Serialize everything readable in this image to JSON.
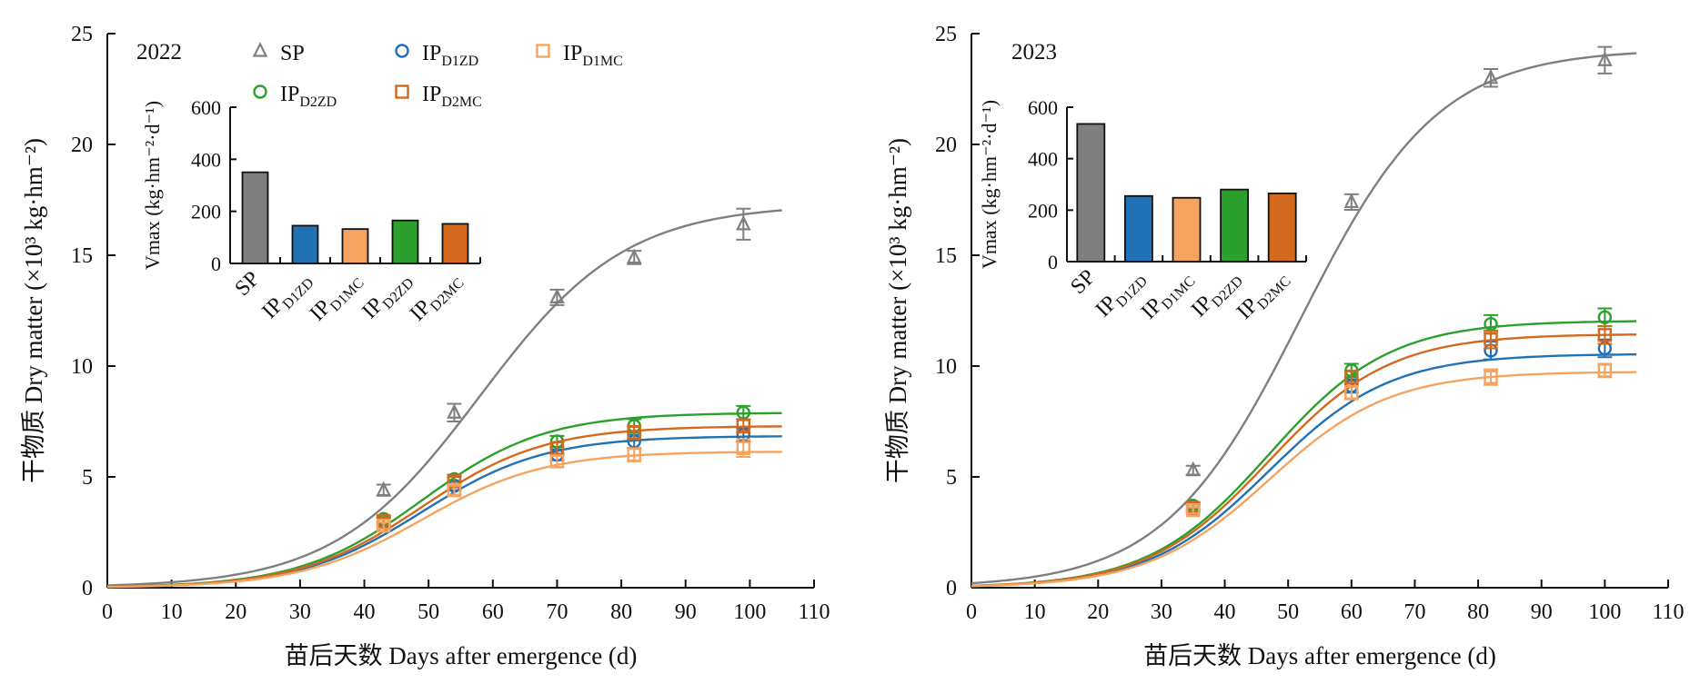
{
  "colors": {
    "SP": "#7f7f7f",
    "IP_D1ZD": "#2171b5",
    "IP_D1MC": "#f4a460",
    "IP_D2ZD": "#2ca02c",
    "IP_D2MC": "#d2691e"
  },
  "chart_data": [
    {
      "type": "line",
      "panel_label": "2022",
      "xlabel": "苗后天数 Days after emergence (d)",
      "ylabel": "干物质 Dry matter (×10³ kg·hm⁻²)",
      "xlim": [
        0,
        110
      ],
      "ylim": [
        0,
        25
      ],
      "xticks": [
        0,
        10,
        20,
        30,
        40,
        50,
        60,
        70,
        80,
        90,
        100,
        110
      ],
      "yticks": [
        0,
        5,
        10,
        15,
        20,
        25
      ],
      "x_obs": [
        43,
        54,
        70,
        82,
        99
      ],
      "legend": {
        "position": "top-center",
        "ncol": 3
      },
      "series": [
        {
          "key": "SP",
          "name": "SP",
          "marker": "triangle",
          "sub": "",
          "values": [
            4.4,
            7.9,
            13.1,
            14.9,
            16.4
          ],
          "err": [
            0.25,
            0.4,
            0.35,
            0.3,
            0.7
          ],
          "fit": {
            "K": 17.3,
            "r": 0.088,
            "t0": 58
          }
        },
        {
          "key": "IP_D1ZD",
          "name": "IP",
          "marker": "circle",
          "sub": "D1ZD",
          "values": [
            3.0,
            4.6,
            6.0,
            6.6,
            6.9
          ],
          "err": [
            0.15,
            0.2,
            0.25,
            0.3,
            0.3
          ],
          "fit": {
            "K": 6.85,
            "r": 0.105,
            "t0": 49
          }
        },
        {
          "key": "IP_D2ZD",
          "name": "IP",
          "marker": "circle",
          "sub": "D2ZD",
          "values": [
            3.1,
            4.9,
            6.6,
            7.3,
            7.9
          ],
          "err": [
            0.15,
            0.2,
            0.25,
            0.3,
            0.3
          ],
          "fit": {
            "K": 7.9,
            "r": 0.105,
            "t0": 49
          }
        },
        {
          "key": "IP_D2MC",
          "name": "IP",
          "marker": "square",
          "sub": "D2MC",
          "values": [
            3.0,
            4.8,
            6.3,
            7.0,
            7.3
          ],
          "err": [
            0.15,
            0.2,
            0.25,
            0.3,
            0.3
          ],
          "fit": {
            "K": 7.3,
            "r": 0.105,
            "t0": 49
          }
        },
        {
          "key": "IP_D1MC",
          "name": "IP",
          "marker": "square",
          "sub": "D1MC",
          "values": [
            2.8,
            4.4,
            5.7,
            6.0,
            6.3
          ],
          "err": [
            0.15,
            0.2,
            0.25,
            0.3,
            0.4
          ],
          "fit": {
            "K": 6.15,
            "r": 0.105,
            "t0": 49
          }
        }
      ],
      "inset": {
        "type": "bar",
        "ylabel": "Vmax (kg·hm⁻²·d⁻¹)",
        "ylim": [
          0,
          600
        ],
        "yticks": [
          0,
          200,
          400,
          600
        ],
        "categories": [
          {
            "key": "SP",
            "name": "SP",
            "sub": "",
            "value": 350
          },
          {
            "key": "IP_D1ZD",
            "name": "IP",
            "sub": "D1ZD",
            "value": 145
          },
          {
            "key": "IP_D1MC",
            "name": "IP",
            "sub": "D1MC",
            "value": 132
          },
          {
            "key": "IP_D2ZD",
            "name": "IP",
            "sub": "D2ZD",
            "value": 165
          },
          {
            "key": "IP_D2MC",
            "name": "IP",
            "sub": "D2MC",
            "value": 152
          }
        ]
      }
    },
    {
      "type": "line",
      "panel_label": "2023",
      "xlabel": "苗后天数 Days after emergence (d)",
      "ylabel": "干物质 Dry matter (×10³ kg·hm⁻²)",
      "xlim": [
        0,
        110
      ],
      "ylim": [
        0,
        25
      ],
      "xticks": [
        0,
        10,
        20,
        30,
        40,
        50,
        60,
        70,
        80,
        90,
        100,
        110
      ],
      "yticks": [
        0,
        5,
        10,
        15,
        20,
        25
      ],
      "x_obs": [
        35,
        60,
        82,
        100
      ],
      "series": [
        {
          "key": "SP",
          "name": "SP",
          "marker": "triangle",
          "sub": "",
          "values": [
            5.3,
            17.4,
            23.0,
            23.8
          ],
          "err": [
            0.2,
            0.35,
            0.4,
            0.6
          ],
          "fit": {
            "K": 24.3,
            "r": 0.092,
            "t0": 52
          }
        },
        {
          "key": "IP_D1ZD",
          "name": "IP",
          "marker": "circle",
          "sub": "D1ZD",
          "values": [
            3.6,
            9.1,
            10.7,
            10.8
          ],
          "err": [
            0.15,
            0.3,
            0.4,
            0.4
          ],
          "fit": {
            "K": 10.55,
            "r": 0.105,
            "t0": 47
          }
        },
        {
          "key": "IP_D2ZD",
          "name": "IP",
          "marker": "circle",
          "sub": "D2ZD",
          "values": [
            3.7,
            9.8,
            11.9,
            12.2
          ],
          "err": [
            0.15,
            0.3,
            0.4,
            0.4
          ],
          "fit": {
            "K": 12.05,
            "r": 0.105,
            "t0": 47
          }
        },
        {
          "key": "IP_D2MC",
          "name": "IP",
          "marker": "square",
          "sub": "D2MC",
          "values": [
            3.6,
            9.5,
            11.2,
            11.4
          ],
          "err": [
            0.15,
            0.3,
            0.4,
            0.4
          ],
          "fit": {
            "K": 11.45,
            "r": 0.105,
            "t0": 47
          }
        },
        {
          "key": "IP_D1MC",
          "name": "IP",
          "marker": "square",
          "sub": "D1MC",
          "values": [
            3.5,
            8.8,
            9.5,
            9.8
          ],
          "err": [
            0.15,
            0.3,
            0.35,
            0.3
          ],
          "fit": {
            "K": 9.75,
            "r": 0.105,
            "t0": 47
          }
        }
      ],
      "inset": {
        "type": "bar",
        "ylabel": "Vmax (kg·hm⁻²·d⁻¹)",
        "ylim": [
          0,
          600
        ],
        "yticks": [
          0,
          200,
          400,
          600
        ],
        "categories": [
          {
            "key": "SP",
            "name": "SP",
            "sub": "",
            "value": 535
          },
          {
            "key": "IP_D1ZD",
            "name": "IP",
            "sub": "D1ZD",
            "value": 255
          },
          {
            "key": "IP_D1MC",
            "name": "IP",
            "sub": "D1MC",
            "value": 248
          },
          {
            "key": "IP_D2ZD",
            "name": "IP",
            "sub": "D2ZD",
            "value": 280
          },
          {
            "key": "IP_D2MC",
            "name": "IP",
            "sub": "D2MC",
            "value": 265
          }
        ]
      }
    }
  ]
}
